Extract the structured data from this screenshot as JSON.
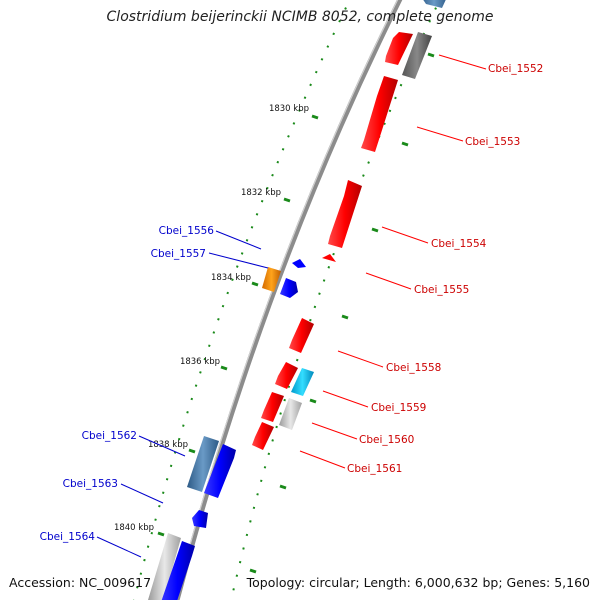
{
  "title": "Clostridium beijerinckii NCIMB 8052, complete genome",
  "accession": "Accession: NC_009617",
  "topology": "Topology: circular; Length: 6,000,632 bp; Genes: 5,160",
  "colors": {
    "forward_gene": "#ff0000",
    "reverse_gene": "#0000ff",
    "backbone": "#8c8c8c",
    "tick_mark": "#1a8a1a",
    "right_label": "#cc0000",
    "left_label": "#0000cc"
  },
  "scale_labels": [
    "1830 kbp",
    "1832 kbp",
    "1834 kbp",
    "1836 kbp",
    "1838 kbp",
    "1840 kbp"
  ],
  "right_labels": [
    "Cbei_1552",
    "Cbei_1553",
    "Cbei_1554",
    "Cbei_1555",
    "Cbei_1558",
    "Cbei_1559",
    "Cbei_1560",
    "Cbei_1561"
  ],
  "left_labels": [
    "Cbei_1556",
    "Cbei_1557",
    "Cbei_1562",
    "Cbei_1563",
    "Cbei_1564"
  ]
}
